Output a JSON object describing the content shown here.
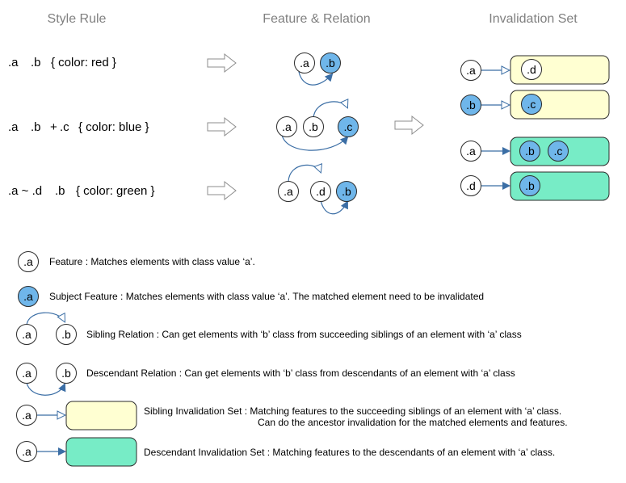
{
  "headers": {
    "style_rule": "Style Rule",
    "feature_relation": "Feature & Relation",
    "invalidation_set": "Invalidation Set"
  },
  "rules": [
    {
      "a": ".a",
      "b": ".b",
      "decl": "{ color: red }"
    },
    {
      "a": ".a",
      "b": ".b",
      "comb": "+",
      "c": ".c",
      "decl": "{ color: blue }"
    },
    {
      "a": ".a ~ .d",
      "b": ".b",
      "decl": "{ color: green }"
    }
  ],
  "nodes": {
    "a": ".a",
    "b": ".b",
    "c": ".c",
    "d": ".d"
  },
  "legend": {
    "feature": "Feature : Matches elements with class value ‘a’.",
    "subject_feature": "Subject Feature : Matches elements with class value ‘a’. The matched element need to be invalidated",
    "sibling_relation": "Sibling Relation : Can get elements with ‘b’ class from succeeding siblings of an element with ‘a’ class",
    "descendant_relation": "Descendant Relation : Can get elements with ‘b’ class from descendants of an element with ‘a’ class",
    "sibling_set_line1": "Sibling Invalidation Set : Matching features to the succeeding siblings of an element with ‘a’ class.",
    "sibling_set_line2": "Can do the ancestor invalidation for the matched elements and features.",
    "descendant_set": "Descendant Invalidation Set : Matching features to the descendants of an element with ‘a’ class."
  },
  "colors": {
    "subject_fill": "#6fb6ea",
    "node_stroke": "#2b2b2b",
    "edge": "#3b6ea5",
    "sibling_set_fill": "#ffffd2",
    "descendant_set_fill": "#77ecc6",
    "arrow_outline": "#8c8c8c"
  }
}
